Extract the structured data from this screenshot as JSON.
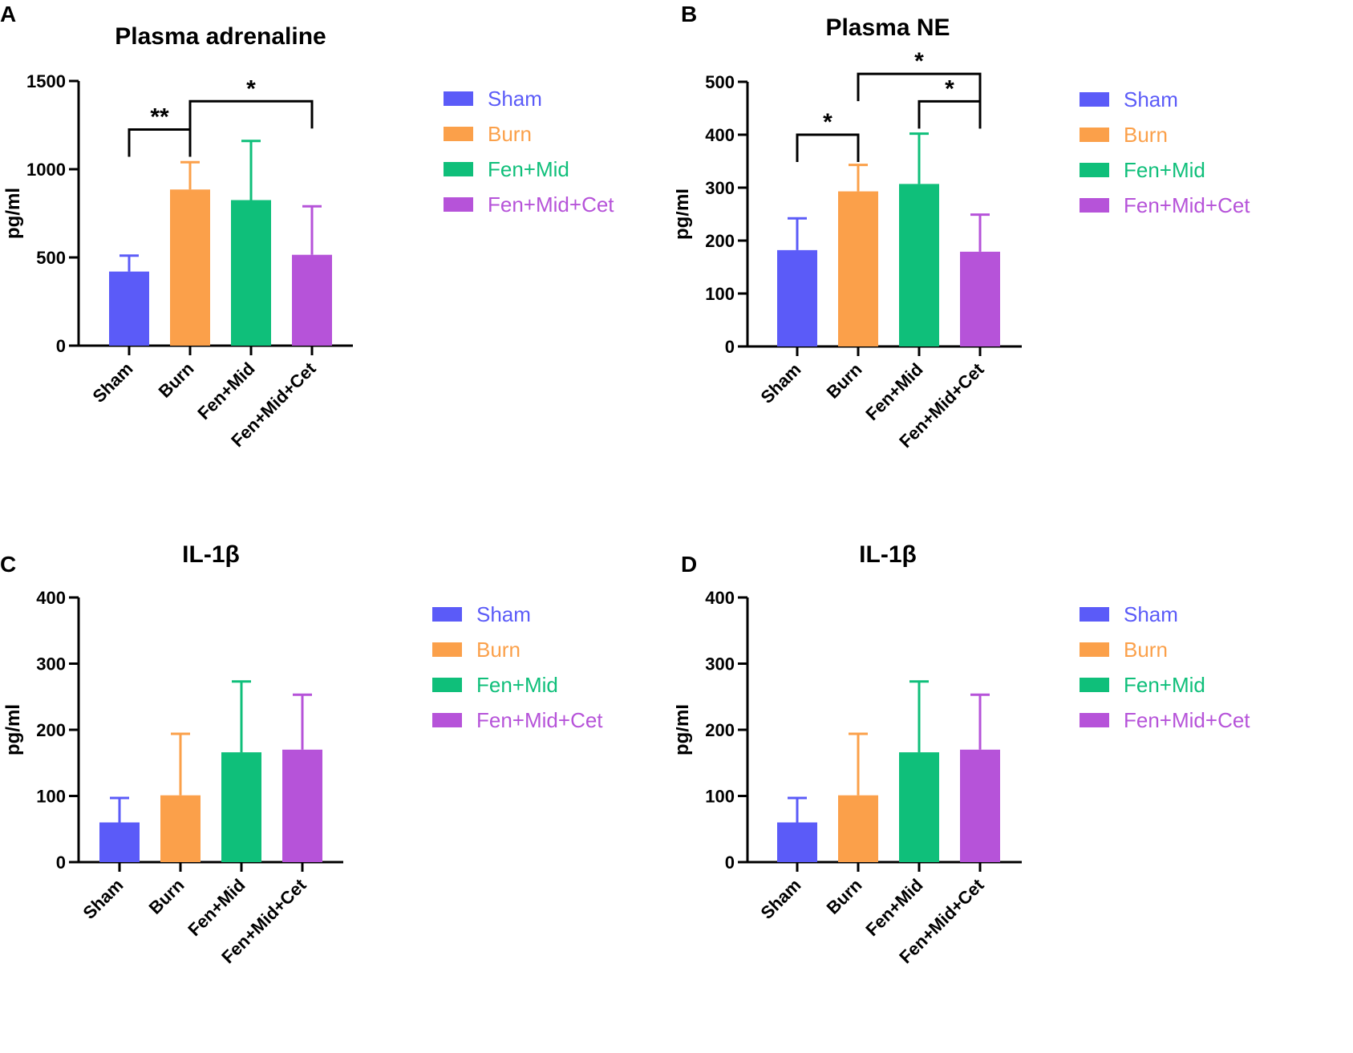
{
  "figure": {
    "colors": {
      "Sham": "#5b5bf8",
      "Burn": "#fba04a",
      "Fen+Mid": "#0fbf7a",
      "Fen+Mid+Cet": "#b653d9"
    }
  },
  "chart_data": [
    {
      "panel": "A",
      "type": "bar",
      "title": "Plasma adrenaline",
      "ylabel": "pg/ml",
      "xlabel": "",
      "ylim": [
        0,
        1500
      ],
      "yticks": [
        0,
        500,
        1000,
        1500
      ],
      "categories": [
        "Sham",
        "Burn",
        "Fen+Mid",
        "Fen+Mid+Cet"
      ],
      "values": [
        420,
        885,
        825,
        515
      ],
      "errors": [
        90,
        155,
        335,
        275
      ],
      "legend": [
        "Sham",
        "Burn",
        "Fen+Mid",
        "Fen+Mid+Cet"
      ],
      "significance": [
        {
          "from": 0,
          "to": 1,
          "label": "**",
          "y": 1225
        },
        {
          "from": 1,
          "to": 3,
          "label": "*",
          "y": 1385
        }
      ]
    },
    {
      "panel": "B",
      "type": "bar",
      "title": "Plasma NE",
      "ylabel": "pg/ml",
      "xlabel": "",
      "ylim": [
        0,
        500
      ],
      "yticks": [
        0,
        100,
        200,
        300,
        400,
        500
      ],
      "categories": [
        "Sham",
        "Burn",
        "Fen+Mid",
        "Fen+Mid+Cet"
      ],
      "values": [
        182,
        293,
        307,
        179
      ],
      "errors": [
        60,
        50,
        95,
        70
      ],
      "legend": [
        "Sham",
        "Burn",
        "Fen+Mid",
        "Fen+Mid+Cet"
      ],
      "significance": [
        {
          "from": 0,
          "to": 1,
          "label": "*",
          "y": 400
        },
        {
          "from": 2,
          "to": 3,
          "label": "*",
          "y": 463
        },
        {
          "from": 1,
          "to": 3,
          "label": "*",
          "y": 515
        }
      ]
    },
    {
      "panel": "C",
      "type": "bar",
      "title": "IL-1β",
      "ylabel": "pg/ml",
      "xlabel": "",
      "ylim": [
        0,
        400
      ],
      "yticks": [
        0,
        100,
        200,
        300,
        400
      ],
      "categories": [
        "Sham",
        "Burn",
        "Fen+Mid",
        "Fen+Mid+Cet"
      ],
      "values": [
        60,
        101,
        166,
        170
      ],
      "errors": [
        37,
        93,
        107,
        83
      ],
      "legend": [
        "Sham",
        "Burn",
        "Fen+Mid",
        "Fen+Mid+Cet"
      ],
      "significance": []
    },
    {
      "panel": "D",
      "type": "bar",
      "title": "IL-1β",
      "ylabel": "pg/ml",
      "xlabel": "",
      "ylim": [
        0,
        400
      ],
      "yticks": [
        0,
        100,
        200,
        300,
        400
      ],
      "categories": [
        "Sham",
        "Burn",
        "Fen+Mid",
        "Fen+Mid+Cet"
      ],
      "values": [
        60,
        101,
        166,
        170
      ],
      "errors": [
        37,
        93,
        107,
        83
      ],
      "legend": [
        "Sham",
        "Burn",
        "Fen+Mid",
        "Fen+Mid+Cet"
      ],
      "significance": []
    }
  ]
}
